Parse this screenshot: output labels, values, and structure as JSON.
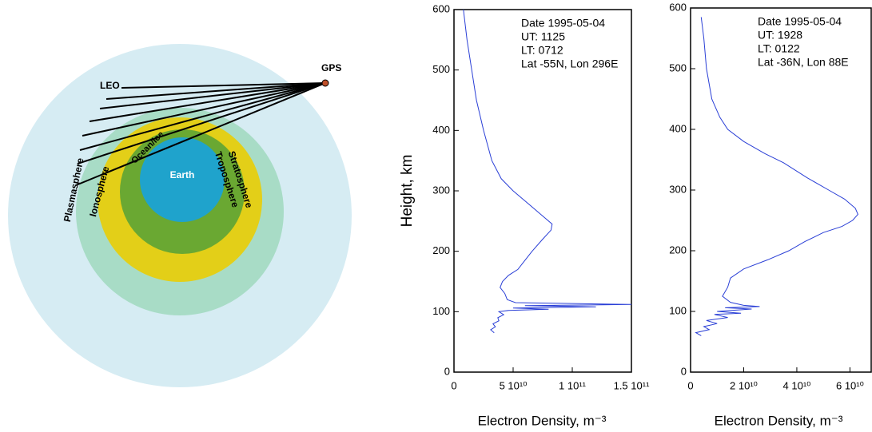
{
  "diagram": {
    "labels": {
      "gps": "GPS",
      "leo": "LEO",
      "plasmasphere": "Plasmasphere",
      "ionosphere": "Ionosphere",
      "ocean_ice": "Ocean/ice",
      "earth": "Earth",
      "troposphere": "Troposphere",
      "stratosphere": "Stratosphere"
    }
  },
  "chart_data": [
    {
      "type": "line",
      "ylabel": "Height, km",
      "xlabel": "Electron Density, m⁻³",
      "annotation": [
        "Date 1995-05-04",
        "UT: 1125",
        "LT: 0712",
        "Lat -55N, Lon 296E"
      ],
      "color": "#2a3fd6",
      "x": [
        8000000000.0,
        11000000000.0,
        15000000000.0,
        19000000000.0,
        25000000000.0,
        32000000000.0,
        40000000000.0,
        50000000000.0,
        62000000000.0,
        74000000000.0,
        83000000000.0,
        82000000000.0,
        75000000000.0,
        66000000000.0,
        58000000000.0,
        54000000000.0,
        46000000000.0,
        41000000000.0,
        39000000000.0,
        43000000000.0,
        45000000000.0,
        52000000000.0,
        150000000000.0,
        60000000000.0,
        120000000000.0,
        50000000000.0,
        80000000000.0,
        46000000000.0,
        38000000000.0,
        42000000000.0,
        37000000000.0,
        38000000000.0,
        33000000000.0,
        35000000000.0,
        31000000000.0,
        34000000000.0
      ],
      "values": [
        600,
        550,
        500,
        450,
        400,
        350,
        320,
        300,
        280,
        260,
        245,
        235,
        220,
        200,
        180,
        170,
        160,
        150,
        140,
        130,
        120,
        115,
        112,
        110,
        108,
        106,
        104,
        102,
        100,
        95,
        90,
        85,
        80,
        75,
        70,
        65
      ],
      "xlim": [
        0,
        150000000000.0
      ],
      "ylim": [
        0,
        600
      ],
      "xticks": [
        0,
        {
          "value": 50000000000.0,
          "label": "5 10¹⁰"
        },
        {
          "value": 100000000000.0,
          "label": "1 10¹¹"
        },
        {
          "value": 150000000000.0,
          "label": "1.5 10¹¹"
        }
      ],
      "yticks": [
        0,
        100,
        200,
        300,
        400,
        500,
        600
      ]
    },
    {
      "type": "line",
      "xlabel": "Electron Density, m⁻³",
      "annotation": [
        "Date 1995-05-04",
        "UT: 1928",
        "LT: 0122",
        "Lat -36N, Lon 88E"
      ],
      "color": "#2a3fd6",
      "x": [
        4000000000.0,
        5000000000.0,
        6000000000.0,
        8000000000.0,
        11000000000.0,
        14000000000.0,
        20000000000.0,
        28000000000.0,
        35000000000.0,
        44000000000.0,
        52000000000.0,
        58000000000.0,
        62000000000.0,
        63000000000.0,
        61000000000.0,
        57000000000.0,
        50000000000.0,
        43000000000.0,
        37000000000.0,
        29000000000.0,
        20000000000.0,
        15000000000.0,
        14000000000.0,
        12000000000.0,
        15000000000.0,
        20000000000.0,
        26000000000.0,
        13000000000.0,
        23000000000.0,
        10000000000.0,
        19000000000.0,
        9000000000.0,
        14000000000.0,
        6000000000.0,
        10000000000.0,
        5000000000.0,
        7000000000.0,
        2000000000.0,
        4000000000.0
      ],
      "values": [
        585,
        550,
        500,
        450,
        420,
        400,
        380,
        360,
        345,
        320,
        300,
        285,
        270,
        260,
        250,
        240,
        230,
        215,
        200,
        185,
        170,
        155,
        140,
        125,
        115,
        110,
        108,
        106,
        104,
        100,
        97,
        95,
        90,
        85,
        80,
        75,
        70,
        65,
        60
      ],
      "xlim": [
        0,
        68000000000.0
      ],
      "ylim": [
        0,
        600
      ],
      "xticks": [
        0,
        {
          "value": 20000000000.0,
          "label": "2 10¹⁰"
        },
        {
          "value": 40000000000.0,
          "label": "4 10¹⁰"
        },
        {
          "value": 60000000000.0,
          "label": "6 10¹⁰"
        }
      ],
      "yticks": [
        0,
        100,
        200,
        300,
        400,
        500,
        600
      ]
    }
  ]
}
